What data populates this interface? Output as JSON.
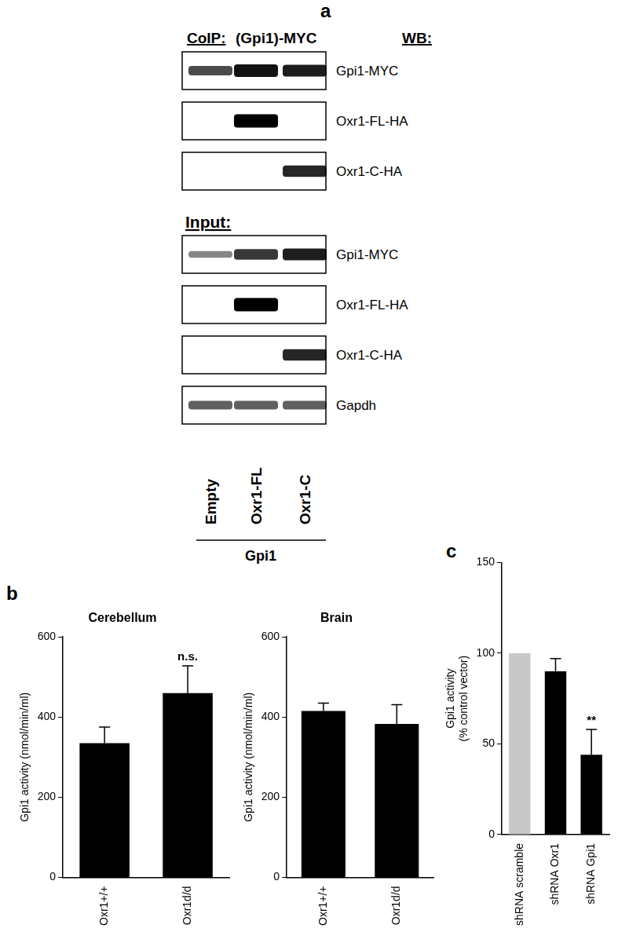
{
  "panel_labels": [
    "a",
    "b",
    "c"
  ],
  "blot": {
    "coip_label": "CoIP:",
    "coip_target": "(Gpi1)-MYC",
    "wb_label": "WB:",
    "input_label": "Input:",
    "lanes": [
      "Empty",
      "Oxr1-FL",
      "Oxr1-C"
    ],
    "lane_group": "Gpi1",
    "coip_rows": [
      {
        "label": "Gpi1-MYC",
        "bands": [
          0.6,
          0.9,
          0.85
        ]
      },
      {
        "label": "Oxr1-FL-HA",
        "bands": [
          0,
          1,
          0
        ]
      },
      {
        "label": "Oxr1-C-HA",
        "bands": [
          0,
          0,
          0.8
        ]
      }
    ],
    "input_rows": [
      {
        "label": "Gpi1-MYC",
        "bands": [
          0.3,
          0.7,
          0.85
        ]
      },
      {
        "label": "Oxr1-FL-HA",
        "bands": [
          0,
          1,
          0
        ]
      },
      {
        "label": "Oxr1-C-HA",
        "bands": [
          0,
          0,
          0.8
        ]
      },
      {
        "label": "Gapdh",
        "bands": [
          0.5,
          0.5,
          0.5
        ]
      }
    ]
  },
  "chart_data": [
    {
      "type": "bar",
      "title": "Cerebellum",
      "ylabel": "Gpi1 activity (nmol/min/ml)",
      "categories": [
        "Oxr1+/+",
        "Oxr1d/d"
      ],
      "values": [
        335,
        460
      ],
      "errors": [
        40,
        68
      ],
      "color": "#000000",
      "ylim": [
        0,
        600
      ],
      "yticks": [
        0,
        200,
        400,
        600
      ],
      "grid": false,
      "annotations": [
        {
          "text": "n.s.",
          "category": "Oxr1d/d"
        }
      ]
    },
    {
      "type": "bar",
      "title": "Brain",
      "ylabel": "Gpi1 activity (nmol/min/ml)",
      "categories": [
        "Oxr1+/+",
        "Oxr1d/d"
      ],
      "values": [
        415,
        383
      ],
      "errors": [
        20,
        48
      ],
      "color": "#000000",
      "ylim": [
        0,
        600
      ],
      "yticks": [
        0,
        200,
        400,
        600
      ],
      "grid": false
    },
    {
      "type": "bar",
      "ylabel": [
        "Gpi1 activity",
        "(% control vector)"
      ],
      "categories": [
        "shRNA scramble",
        "shRNA Oxr1",
        "shRNA Gpi1"
      ],
      "values": [
        100,
        90,
        44
      ],
      "errors": [
        null,
        7,
        14
      ],
      "colors": [
        "#c8c8c8",
        "#000000",
        "#000000"
      ],
      "ylim": [
        0,
        150
      ],
      "yticks": [
        0,
        50,
        100,
        150
      ],
      "grid": false,
      "annotations": [
        {
          "text": "**",
          "category": "shRNA Gpi1"
        }
      ]
    }
  ]
}
